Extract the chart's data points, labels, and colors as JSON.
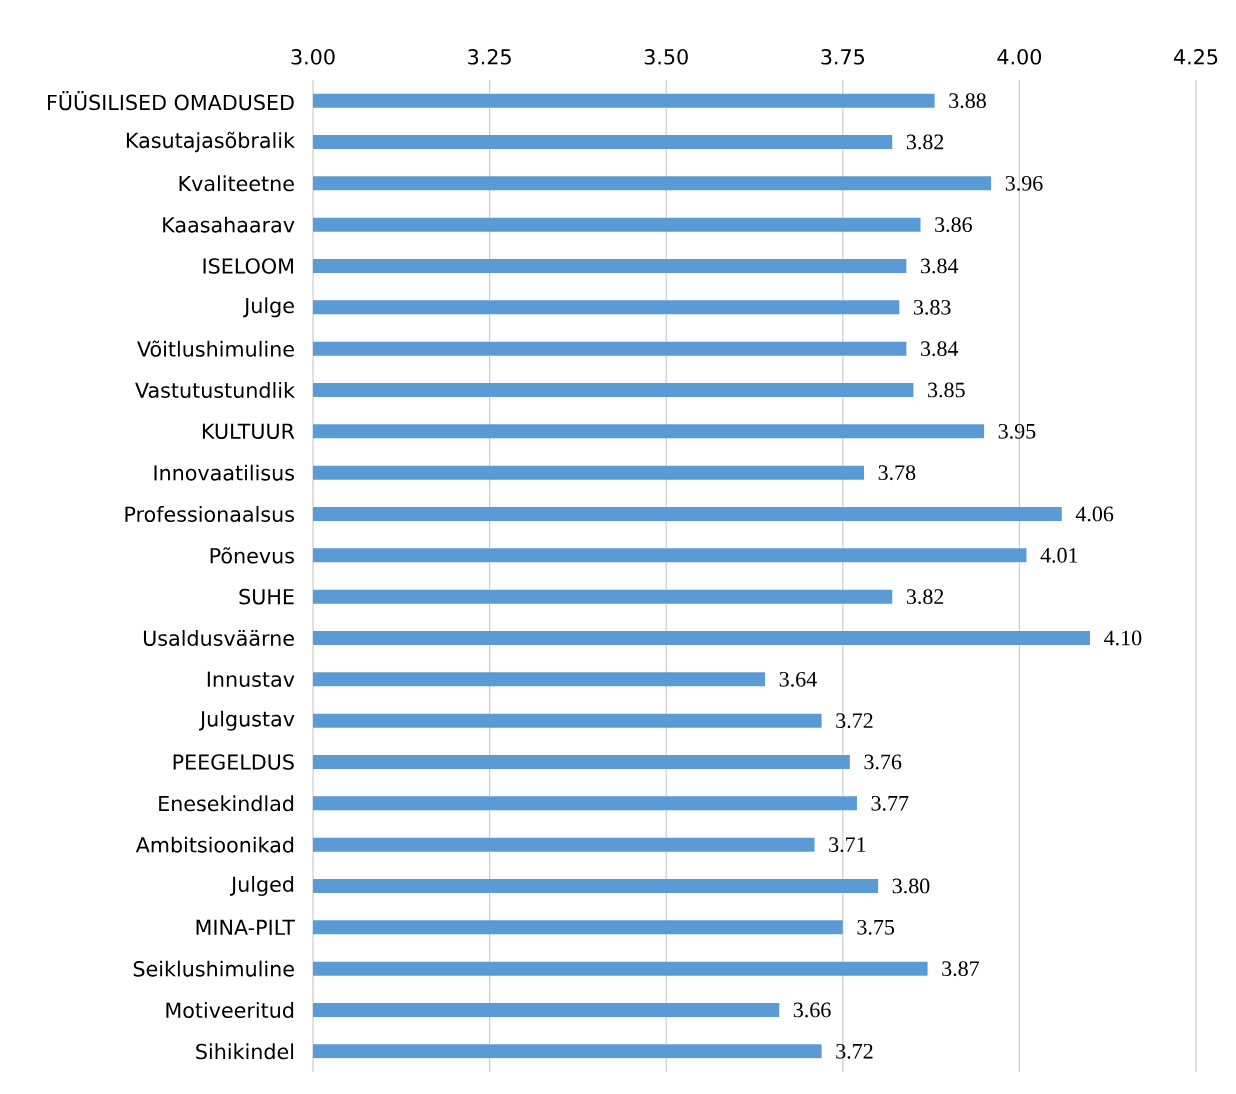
{
  "chart_data": {
    "type": "bar",
    "orientation": "horizontal",
    "categories": [
      "FÜÜSILISED OMADUSED",
      "Kasutajasõbralik",
      "Kvaliteetne",
      "Kaasahaarav",
      "ISELOOM",
      "Julge",
      "Võitlushimuline",
      "Vastutustundlik",
      "KULTUUR",
      "Innovaatilisus",
      "Professionaalsus",
      "Põnevus",
      "SUHE",
      "Usaldusväärne",
      "Innustav",
      "Julgustav",
      "PEEGELDUS",
      "Enesekindlad",
      "Ambitsioonikad",
      "Julged",
      "MINA-PILT",
      "Seiklushimuline",
      "Motiveeritud",
      "Sihikindel"
    ],
    "values": [
      3.88,
      3.82,
      3.96,
      3.86,
      3.84,
      3.83,
      3.84,
      3.85,
      3.95,
      3.78,
      4.06,
      4.01,
      3.82,
      4.1,
      3.64,
      3.72,
      3.76,
      3.77,
      3.71,
      3.8,
      3.75,
      3.87,
      3.66,
      3.72
    ],
    "value_labels": [
      "3.88",
      "3.82",
      "3.96",
      "3.86",
      "3.84",
      "3.83",
      "3.84",
      "3.85",
      "3.95",
      "3.78",
      "4.06",
      "4.01",
      "3.82",
      "4.10",
      "3.64",
      "3.72",
      "3.76",
      "3.77",
      "3.71",
      "3.80",
      "3.75",
      "3.87",
      "3.66",
      "3.72"
    ],
    "color": "#5b9bd5",
    "xlim": [
      3.0,
      4.25
    ],
    "xticks": [
      {
        "value": 3.0,
        "label": "3.00"
      },
      {
        "value": 3.25,
        "label": "3.25"
      },
      {
        "value": 3.5,
        "label": "3.50"
      },
      {
        "value": 3.75,
        "label": "3.75"
      },
      {
        "value": 4.0,
        "label": "4.00"
      },
      {
        "value": 4.25,
        "label": "4.25"
      }
    ],
    "grid": "x"
  }
}
